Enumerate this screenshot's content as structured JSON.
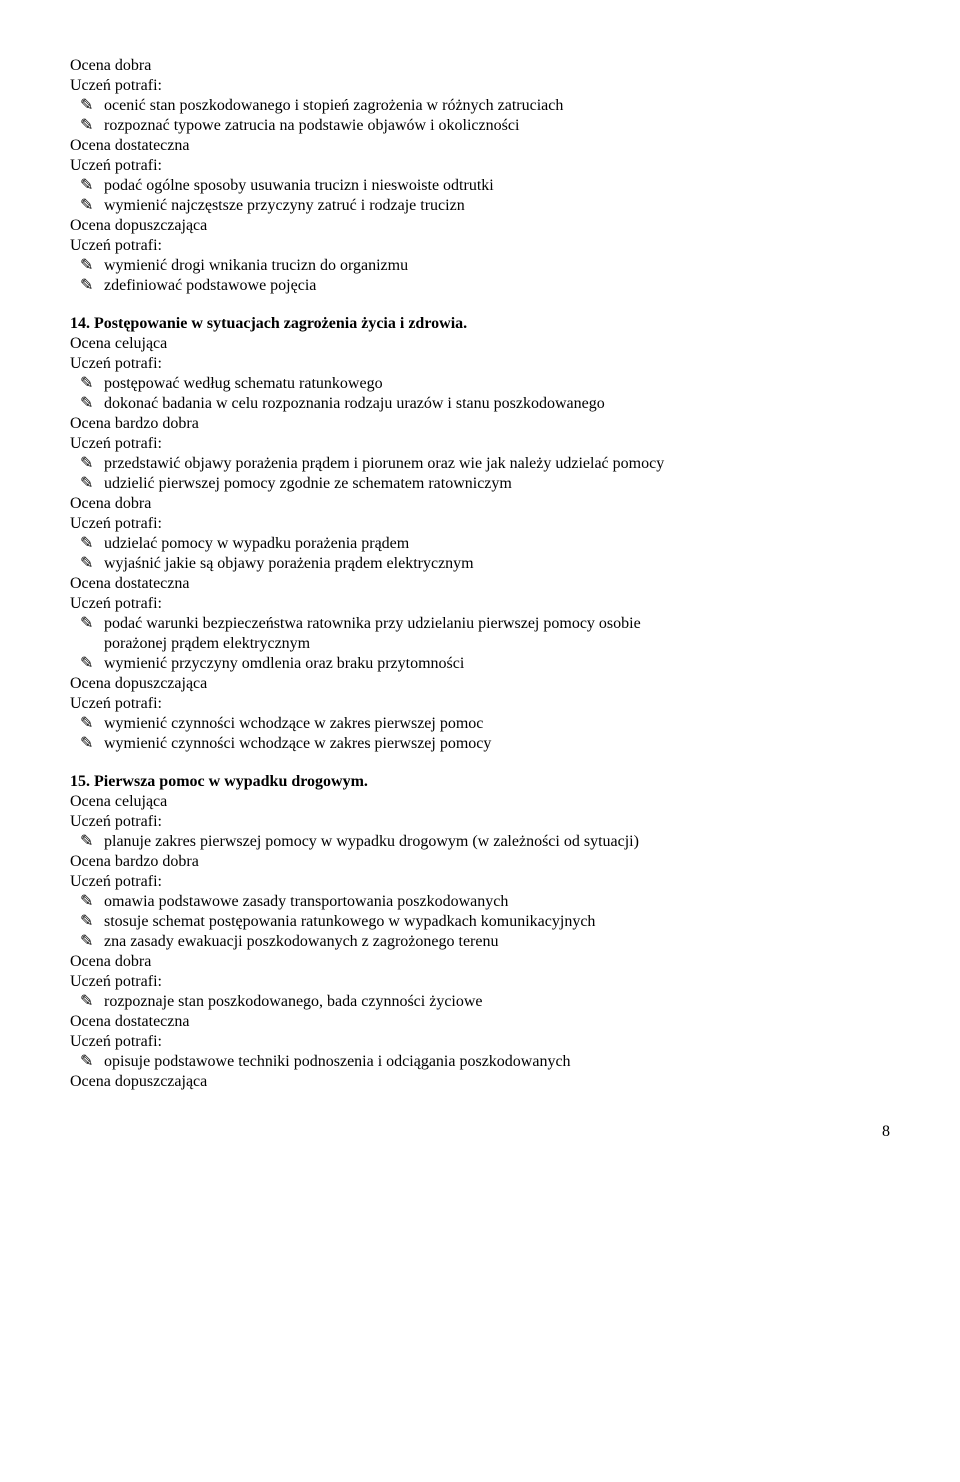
{
  "text_color": "#000000",
  "background_color": "#ffffff",
  "font_family": "Times New Roman",
  "base_fontsize": 16,
  "bullet_glyph": "✎",
  "page_number": "8",
  "pre_dobra": "Ocena dobra",
  "pre_up1": "Uczeń potrafi:",
  "pre_b1": "ocenić stan poszkodowanego i stopień zagrożenia w różnych zatruciach",
  "pre_b2": "rozpoznać typowe zatrucia na podstawie objawów i okoliczności",
  "pre_dost": "Ocena dostateczna",
  "pre_up2": "Uczeń potrafi:",
  "pre_b3": "podać ogólne sposoby usuwania trucizn i nieswoiste odtrutki",
  "pre_b4": "wymienić najczęstsze przyczyny zatruć i rodzaje trucizn",
  "pre_dop": "Ocena dopuszczająca",
  "pre_up3": "Uczeń potrafi:",
  "pre_b5": "wymienić drogi wnikania trucizn do organizmu",
  "pre_b6": "zdefiniować podstawowe pojęcia",
  "s14_title": "14. Postępowanie w sytuacjach zagrożenia życia i zdrowia.",
  "s14_cel": "Ocena celująca",
  "s14_up1": "Uczeń potrafi:",
  "s14_b1": "postępować według schematu ratunkowego",
  "s14_b2": "dokonać badania w celu rozpoznania rodzaju urazów i stanu poszkodowanego",
  "s14_bdb": "Ocena bardzo dobra",
  "s14_up2": "Uczeń potrafi:",
  "s14_b3": "przedstawić objawy porażenia prądem i piorunem oraz wie jak należy udzielać pomocy",
  "s14_b4": "udzielić pierwszej pomocy zgodnie ze schematem ratowniczym",
  "s14_db": "Ocena dobra",
  "s14_up3": "Uczeń potrafi:",
  "s14_b5": "udzielać pomocy w wypadku porażenia prądem",
  "s14_b6": "wyjaśnić jakie są objawy porażenia prądem elektrycznym",
  "s14_dst": "Ocena dostateczna",
  "s14_up4": "Uczeń potrafi:",
  "s14_b7a": "podać warunki bezpieczeństwa ratownika przy udzielaniu pierwszej pomocy osobie",
  "s14_b7b": "porażonej prądem elektrycznym",
  "s14_b8": "wymienić przyczyny omdlenia oraz braku przytomności",
  "s14_dop": "Ocena dopuszczająca",
  "s14_up5": "Uczeń potrafi:",
  "s14_b9": "wymienić czynności wchodzące w zakres pierwszej pomoc",
  "s14_b10": "wymienić czynności wchodzące w zakres pierwszej pomocy",
  "s15_title": "15. Pierwsza pomoc w wypadku drogowym.",
  "s15_cel": "Ocena celująca",
  "s15_up1": "Uczeń potrafi:",
  "s15_b1": "planuje zakres pierwszej pomocy w wypadku drogowym (w zależności od sytuacji)",
  "s15_bdb": "Ocena bardzo dobra",
  "s15_up2": "Uczeń potrafi:",
  "s15_b2": "omawia podstawowe zasady transportowania poszkodowanych",
  "s15_b3": "stosuje schemat postępowania ratunkowego w wypadkach komunikacyjnych",
  "s15_b4": "zna zasady ewakuacji poszkodowanych z zagrożonego terenu",
  "s15_db": "Ocena dobra",
  "s15_up3": "Uczeń potrafi:",
  "s15_b5": "rozpoznaje stan poszkodowanego, bada czynności życiowe",
  "s15_dst": "Ocena dostateczna",
  "s15_up4": "Uczeń potrafi:",
  "s15_b6": "opisuje podstawowe techniki podnoszenia i odciągania poszkodowanych",
  "s15_dop": "Ocena dopuszczająca"
}
